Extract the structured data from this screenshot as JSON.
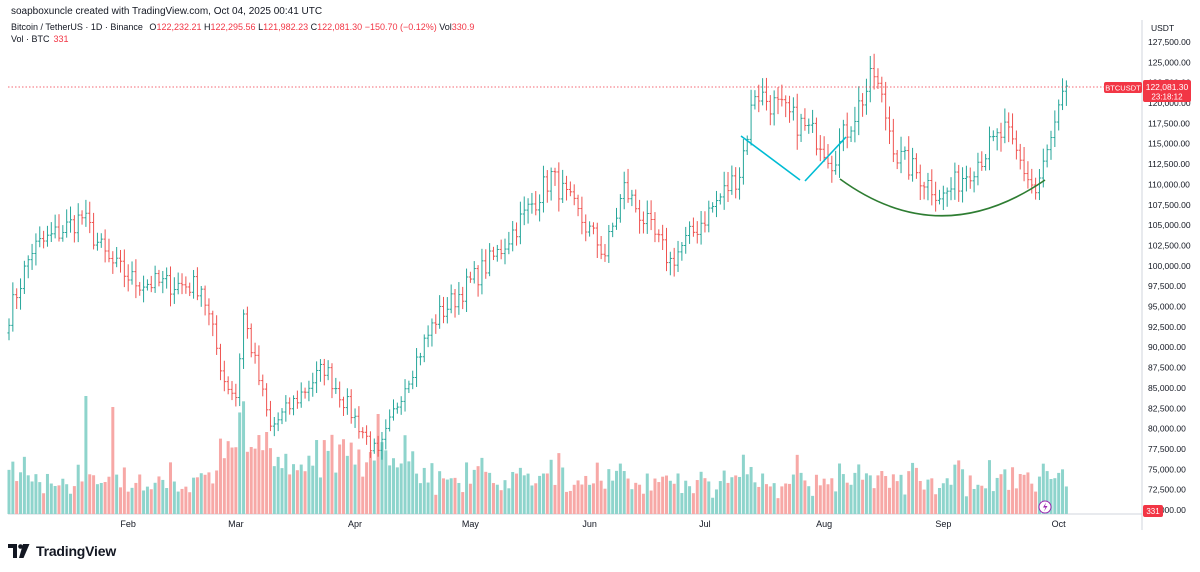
{
  "header": {
    "attribution": "soapboxuncle created with TradingView.com, Oct 04, 2025 00:41 UTC",
    "symbol": "Bitcoin / TetherUS · 1D · Binance",
    "open_label": "O",
    "open": "122,232.21",
    "high_label": "H",
    "high": "122,295.56",
    "low_label": "L",
    "low": "121,982.23",
    "close_label": "C",
    "close": "122,081.30",
    "change": "−150.70 (−0.12%)",
    "vol_label": "Vol",
    "vol": "330.9",
    "vol_series_label": "Vol · BTC",
    "vol_series_value": "331"
  },
  "price_axis": {
    "currency": "USDT",
    "ticks": [
      "127,500.00",
      "125,000.00",
      "122,500.00",
      "120,000.00",
      "117,500.00",
      "115,000.00",
      "112,500.00",
      "110,000.00",
      "107,500.00",
      "105,000.00",
      "102,500.00",
      "100,000.00",
      "97,500.00",
      "95,000.00",
      "92,500.00",
      "90,000.00",
      "87,500.00",
      "85,000.00",
      "82,500.00",
      "80,000.00",
      "77,500.00",
      "75,000.00",
      "72,500.00",
      "70,000.00"
    ],
    "tick_values": [
      127500,
      125000,
      122500,
      120000,
      117500,
      115000,
      112500,
      110000,
      107500,
      105000,
      102500,
      100000,
      97500,
      95000,
      92500,
      90000,
      87500,
      85000,
      82500,
      80000,
      77500,
      75000,
      72500,
      70000
    ]
  },
  "price_label": {
    "symbol": "BTCUSDT",
    "price": "122,081.30",
    "countdown": "23:18:12",
    "volume": "331"
  },
  "time_axis": {
    "months": [
      "Feb",
      "Mar",
      "Apr",
      "May",
      "Jun",
      "Jul",
      "Aug",
      "Sep",
      "Oct"
    ]
  },
  "footer": {
    "brand": "TradingView"
  },
  "colors": {
    "up": "#26A69A",
    "down": "#EF5350",
    "up_vol": "#8ED4CC",
    "down_vol": "#F7A8A6",
    "price_line": "#F23645",
    "cup": "#2E7D32",
    "vee": "#00BCD4"
  },
  "chart_data": {
    "type": "ohlc-bar",
    "interval": "1D",
    "ylim": [
      70000,
      127500
    ],
    "current_price": 122081.3,
    "key_points": [
      {
        "date": "2025-01-01",
        "price": 94000
      },
      {
        "date": "2025-01-07",
        "price": 102000
      },
      {
        "date": "2025-01-20",
        "price": 106000
      },
      {
        "date": "2025-01-27",
        "price": 100500
      },
      {
        "date": "2025-02-03",
        "price": 98000
      },
      {
        "date": "2025-02-20",
        "price": 97500
      },
      {
        "date": "2025-02-26",
        "price": 86000
      },
      {
        "date": "2025-03-01",
        "price": 84000
      },
      {
        "date": "2025-03-03",
        "price": 94000
      },
      {
        "date": "2025-03-10",
        "price": 80000
      },
      {
        "date": "2025-03-24",
        "price": 87500
      },
      {
        "date": "2025-04-07",
        "price": 76500
      },
      {
        "date": "2025-04-13",
        "price": 84500
      },
      {
        "date": "2025-04-22",
        "price": 93500
      },
      {
        "date": "2025-05-08",
        "price": 101500
      },
      {
        "date": "2025-05-22",
        "price": 111000
      },
      {
        "date": "2025-06-05",
        "price": 101500
      },
      {
        "date": "2025-06-10",
        "price": 109500
      },
      {
        "date": "2025-06-22",
        "price": 100500
      },
      {
        "date": "2025-07-01",
        "price": 106000
      },
      {
        "date": "2025-07-10",
        "price": 111500
      },
      {
        "date": "2025-07-14",
        "price": 121500
      },
      {
        "date": "2025-07-31",
        "price": 115500
      },
      {
        "date": "2025-08-03",
        "price": 113000
      },
      {
        "date": "2025-08-14",
        "price": 123500
      },
      {
        "date": "2025-08-20",
        "price": 113500
      },
      {
        "date": "2025-09-01",
        "price": 108500
      },
      {
        "date": "2025-09-17",
        "price": 116500
      },
      {
        "date": "2025-09-25",
        "price": 109000
      },
      {
        "date": "2025-10-01",
        "price": 118500
      },
      {
        "date": "2025-10-03",
        "price": 122081
      }
    ]
  }
}
